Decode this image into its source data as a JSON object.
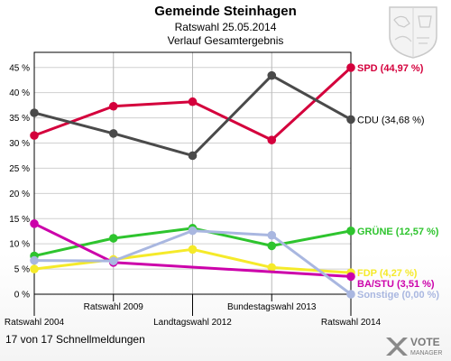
{
  "header": {
    "title": "Gemeinde Steinhagen",
    "subtitle1": "Ratswahl 25.05.2014",
    "subtitle2": "Verlauf Gesamtergebnis"
  },
  "footer": {
    "status": "17 von 17 Schnellmeldungen"
  },
  "logo": {
    "line1": "VOTE",
    "line2": "MANAGER"
  },
  "chart_data": {
    "type": "line",
    "title": "Gemeinde Steinhagen",
    "categories": [
      "Ratswahl 2004",
      "Ratswahl 2009",
      "Landtagswahl 2012",
      "Bundestagswahl 2013",
      "Ratswahl 2014"
    ],
    "category_rows": [
      0,
      1,
      0,
      1,
      0
    ],
    "ylim": [
      0,
      48
    ],
    "yticks": [
      0,
      5,
      10,
      15,
      20,
      25,
      30,
      35,
      40,
      45
    ],
    "ytick_labels": [
      "0 %",
      "5 %",
      "10 %",
      "15 %",
      "20 %",
      "25 %",
      "30 %",
      "35 %",
      "40 %",
      "45 %"
    ],
    "grid": true,
    "series": [
      {
        "name": "SPD",
        "end_label": "SPD (44,97 %)",
        "color": "#d4003c",
        "values": [
          31.5,
          37.3,
          38.2,
          30.6,
          44.97
        ]
      },
      {
        "name": "CDU",
        "end_label": "CDU (34,68 %)",
        "color": "#4a4a4a",
        "values": [
          36.0,
          31.9,
          27.5,
          43.4,
          34.68
        ]
      },
      {
        "name": "GRÜNE",
        "end_label": "GRÜNE (12,57 %)",
        "color": "#2ec42e",
        "values": [
          7.6,
          11.1,
          13.1,
          9.6,
          12.57
        ]
      },
      {
        "name": "FDP",
        "end_label": "FDP (4,27 %)",
        "color": "#f5ea2a",
        "values": [
          5.0,
          6.9,
          8.9,
          5.3,
          4.27
        ]
      },
      {
        "name": "BA/STU",
        "end_label": "BA/STU (3,51 %)",
        "color": "#cc00aa",
        "values": [
          14.0,
          6.3,
          null,
          null,
          3.51
        ]
      },
      {
        "name": "Sonstige",
        "end_label": "Sonstige (0,00 %)",
        "color": "#a9b7e0",
        "values": [
          6.7,
          6.6,
          12.6,
          11.7,
          0.0
        ]
      }
    ]
  }
}
